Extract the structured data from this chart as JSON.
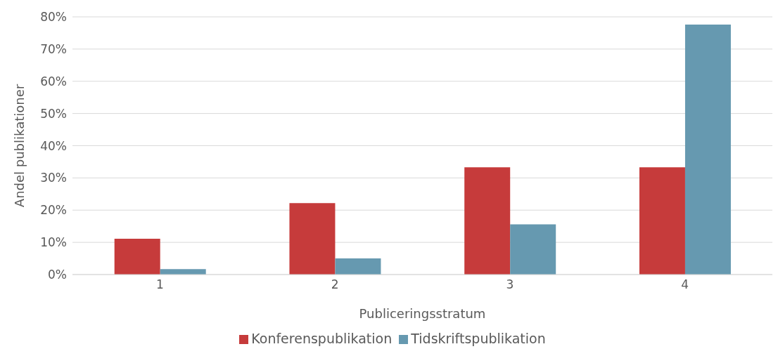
{
  "chart_data": {
    "type": "bar",
    "xlabel": "Publiceringsstratum",
    "ylabel": "Andel publikationer",
    "categories": [
      "1",
      "2",
      "3",
      "4"
    ],
    "series": [
      {
        "name": "Konferenspublikation",
        "color": "#c63b3b",
        "values": [
          11.1,
          22.2,
          33.3,
          33.3
        ]
      },
      {
        "name": "Tidskriftspublikation",
        "color": "#6699b0",
        "values": [
          1.7,
          5.0,
          15.6,
          77.6
        ]
      }
    ],
    "ylim": [
      0,
      80
    ],
    "yticks": [
      {
        "value": 0,
        "label": "0%"
      },
      {
        "value": 10,
        "label": "10%"
      },
      {
        "value": 20,
        "label": "20%"
      },
      {
        "value": 30,
        "label": "30%"
      },
      {
        "value": 40,
        "label": "40%"
      },
      {
        "value": 50,
        "label": "50%"
      },
      {
        "value": 60,
        "label": "60%"
      },
      {
        "value": 70,
        "label": "70%"
      },
      {
        "value": 80,
        "label": "80%"
      }
    ],
    "grid": "y",
    "legend": "bottom"
  }
}
